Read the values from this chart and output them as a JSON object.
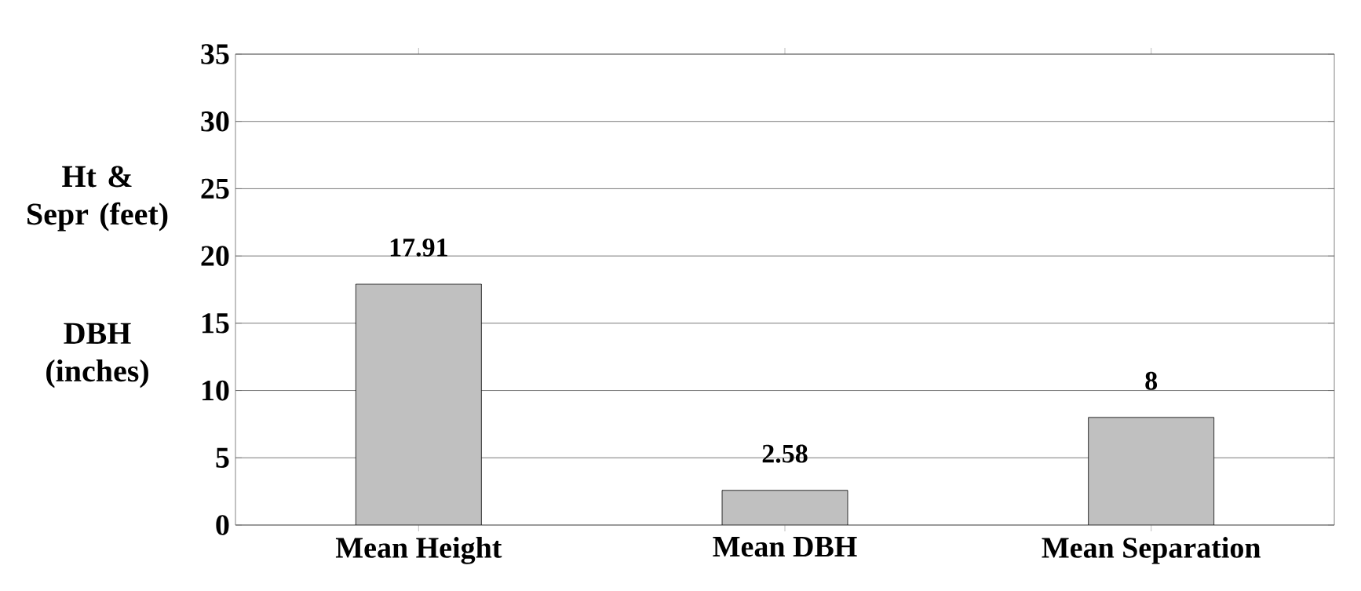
{
  "chart_data": {
    "type": "bar",
    "ylabel": "Ht & Sepr (feet)",
    "annotations": [
      "DBH (inches)"
    ],
    "categories": [
      "Mean Height",
      "Mean DBH",
      "Mean Separation"
    ],
    "values": [
      17.91,
      2.58,
      8
    ],
    "color": "#c0c0c0",
    "ylim": [
      0,
      35
    ],
    "yticks": [
      0,
      5,
      10,
      15,
      20,
      25,
      30,
      35
    ],
    "grid": "y",
    "data_labels": true
  }
}
